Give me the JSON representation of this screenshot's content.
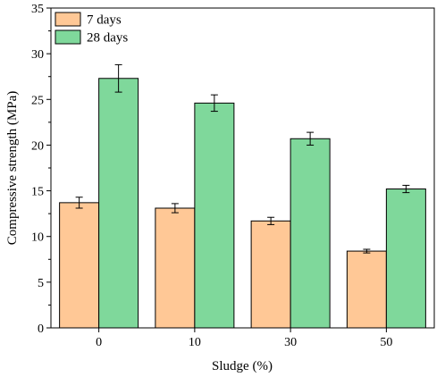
{
  "chart_data": {
    "type": "bar",
    "categories": [
      "0",
      "10",
      "30",
      "50"
    ],
    "series": [
      {
        "name": "7 days",
        "color": "#FFC896",
        "values": [
          13.7,
          13.1,
          11.7,
          8.4
        ],
        "errors": [
          0.6,
          0.5,
          0.4,
          0.2
        ]
      },
      {
        "name": "28 days",
        "color": "#7FD89B",
        "values": [
          27.3,
          24.6,
          20.7,
          15.2
        ],
        "errors": [
          1.5,
          0.9,
          0.7,
          0.4
        ]
      }
    ],
    "xlabel": "Sludge (%)",
    "ylabel": "Compressive strength (MPa)",
    "ylim": [
      0,
      35
    ],
    "yticks": [
      0,
      5,
      10,
      15,
      20,
      25,
      30,
      35
    ],
    "grid": false,
    "legend": "top-left"
  }
}
